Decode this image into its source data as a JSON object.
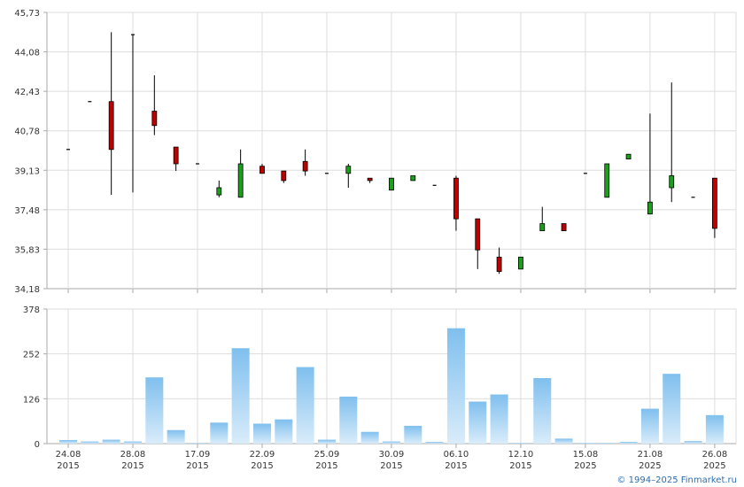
{
  "chart_data": {
    "type": "candlestick",
    "price_panel": {
      "ylim": [
        34.18,
        45.73
      ],
      "y_ticks": [
        "45,73",
        "44,08",
        "42,43",
        "40,78",
        "39,13",
        "37,48",
        "35,83",
        "34,18"
      ],
      "candles": [
        {
          "o": 40.0,
          "h": 40.0,
          "l": 40.0,
          "c": 40.0
        },
        {
          "o": 42.0,
          "h": 42.0,
          "l": 42.0,
          "c": 42.0
        },
        {
          "o": 42.0,
          "h": 44.9,
          "l": 38.1,
          "c": 40.0
        },
        {
          "o": 44.8,
          "h": 44.8,
          "l": 38.2,
          "c": 44.8
        },
        {
          "o": 41.6,
          "h": 43.1,
          "l": 40.6,
          "c": 41.0
        },
        {
          "o": 40.1,
          "h": 40.1,
          "l": 39.1,
          "c": 39.4
        },
        {
          "o": 39.4,
          "h": 39.4,
          "l": 39.4,
          "c": 39.4
        },
        {
          "o": 38.1,
          "h": 38.7,
          "l": 38.0,
          "c": 38.4
        },
        {
          "o": 38.0,
          "h": 40.0,
          "l": 38.0,
          "c": 39.4
        },
        {
          "o": 39.3,
          "h": 39.4,
          "l": 39.0,
          "c": 39.0
        },
        {
          "o": 39.1,
          "h": 39.1,
          "l": 38.6,
          "c": 38.7
        },
        {
          "o": 39.5,
          "h": 40.0,
          "l": 38.9,
          "c": 39.1
        },
        {
          "o": 39.0,
          "h": 39.0,
          "l": 39.0,
          "c": 39.0
        },
        {
          "o": 39.0,
          "h": 39.4,
          "l": 38.4,
          "c": 39.3
        },
        {
          "o": 38.8,
          "h": 38.8,
          "l": 38.6,
          "c": 38.7
        },
        {
          "o": 38.3,
          "h": 38.8,
          "l": 38.3,
          "c": 38.8
        },
        {
          "o": 38.7,
          "h": 38.9,
          "l": 38.7,
          "c": 38.9
        },
        {
          "o": 38.5,
          "h": 38.5,
          "l": 38.5,
          "c": 38.5
        },
        {
          "o": 38.8,
          "h": 38.9,
          "l": 36.6,
          "c": 37.1
        },
        {
          "o": 37.1,
          "h": 37.1,
          "l": 35.0,
          "c": 35.8
        },
        {
          "o": 35.5,
          "h": 35.9,
          "l": 34.8,
          "c": 34.9
        },
        {
          "o": 35.0,
          "h": 35.5,
          "l": 35.0,
          "c": 35.5
        },
        {
          "o": 36.6,
          "h": 37.6,
          "l": 36.6,
          "c": 36.9
        },
        {
          "o": 36.9,
          "h": 36.9,
          "l": 36.6,
          "c": 36.6
        },
        {
          "o": 39.0,
          "h": 39.0,
          "l": 39.0,
          "c": 39.0
        },
        {
          "o": 38.0,
          "h": 39.4,
          "l": 38.0,
          "c": 39.4
        },
        {
          "o": 39.6,
          "h": 39.8,
          "l": 39.6,
          "c": 39.8
        },
        {
          "o": 37.3,
          "h": 41.5,
          "l": 37.3,
          "c": 37.8
        },
        {
          "o": 38.4,
          "h": 42.8,
          "l": 37.8,
          "c": 38.9
        },
        {
          "o": 38.0,
          "h": 38.0,
          "l": 38.0,
          "c": 38.0
        },
        {
          "o": 38.8,
          "h": 38.8,
          "l": 36.3,
          "c": 36.7
        }
      ]
    },
    "volume_panel": {
      "ylim": [
        0,
        378
      ],
      "y_ticks": [
        "378",
        "252",
        "126",
        "0"
      ],
      "values": [
        10,
        6,
        11,
        6,
        186,
        38,
        2,
        59,
        268,
        56,
        68,
        215,
        11,
        132,
        33,
        6,
        50,
        5,
        324,
        118,
        138,
        2,
        184,
        14,
        2,
        2,
        5,
        98,
        196,
        7,
        80
      ]
    },
    "x_labels": [
      {
        "date": "24.08",
        "year": "2015",
        "index": 0
      },
      {
        "date": "28.08",
        "year": "2015",
        "index": 3
      },
      {
        "date": "17.09",
        "year": "2015",
        "index": 6
      },
      {
        "date": "22.09",
        "year": "2015",
        "index": 9
      },
      {
        "date": "25.09",
        "year": "2015",
        "index": 12
      },
      {
        "date": "30.09",
        "year": "2015",
        "index": 15
      },
      {
        "date": "06.10",
        "year": "2015",
        "index": 18
      },
      {
        "date": "12.10",
        "year": "2015",
        "index": 21
      },
      {
        "date": "15.08",
        "year": "2025",
        "index": 24
      },
      {
        "date": "21.08",
        "year": "2025",
        "index": 27
      },
      {
        "date": "26.08",
        "year": "2025",
        "index": 30
      }
    ],
    "colors": {
      "up": "#1aa01a",
      "down": "#c00000",
      "volume_top": "#7fbfee",
      "volume_bottom": "#d9ecfa",
      "grid": "#dddddd",
      "axis": "#aaaaaa"
    },
    "credit": "© 1994–2025 Finmarket.ru"
  }
}
